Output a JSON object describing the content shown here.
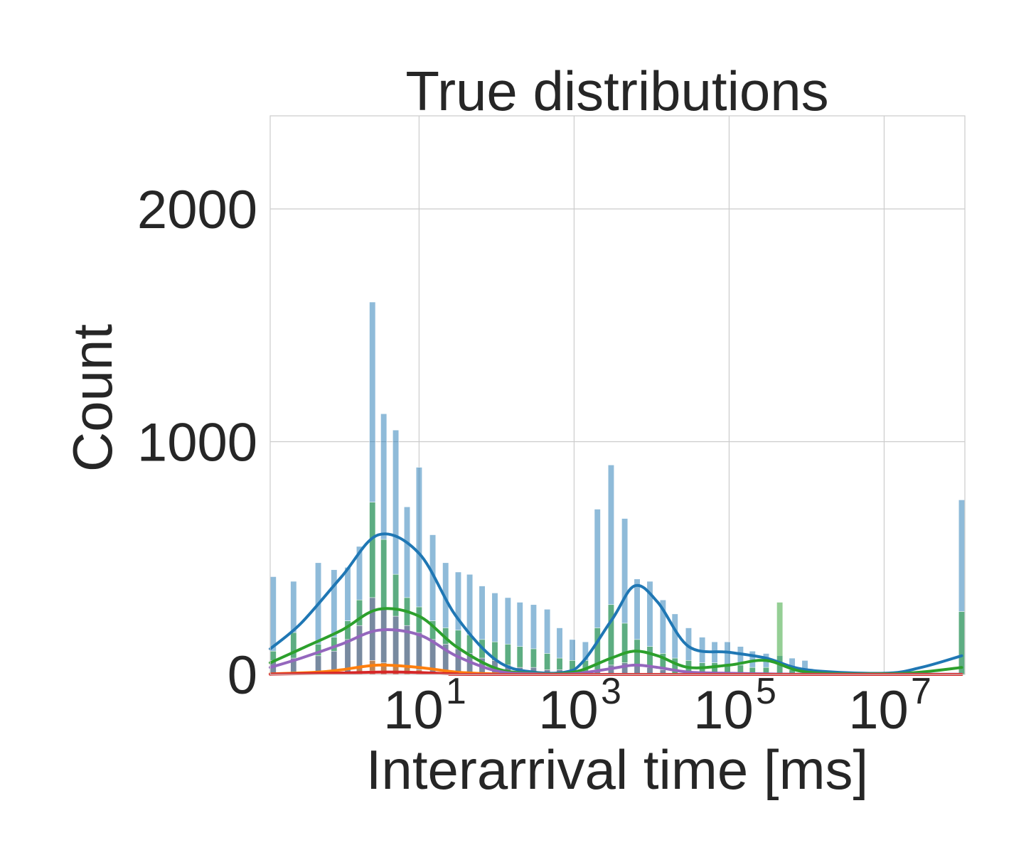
{
  "chart_data": {
    "type": "bar",
    "title": "True distributions",
    "xlabel": "Interarrival time [ms]",
    "ylabel": "Count",
    "x_scale": "log",
    "xlim": [
      0.12,
      110000000
    ],
    "ylim": [
      0,
      2400
    ],
    "grid": true,
    "x_ticks": [
      {
        "base": "10",
        "exp": "1",
        "value": 10
      },
      {
        "base": "10",
        "exp": "3",
        "value": 1000
      },
      {
        "base": "10",
        "exp": "5",
        "value": 100000
      },
      {
        "base": "10",
        "exp": "7",
        "value": 10000000
      }
    ],
    "y_ticks": [
      {
        "label": "0",
        "value": 0
      },
      {
        "label": "1000",
        "value": 1000
      },
      {
        "label": "2000",
        "value": 2000
      }
    ],
    "series": [
      {
        "color": "#1f77b4",
        "hist": [
          [
            0.13,
            420
          ],
          [
            0.24,
            400
          ],
          [
            0.5,
            480
          ],
          [
            0.8,
            450
          ],
          [
            1.2,
            460
          ],
          [
            1.7,
            550
          ],
          [
            2.5,
            1600
          ],
          [
            3.5,
            1120
          ],
          [
            5,
            1050
          ],
          [
            7,
            720
          ],
          [
            10,
            890
          ],
          [
            15,
            600
          ],
          [
            22,
            480
          ],
          [
            32,
            440
          ],
          [
            45,
            430
          ],
          [
            65,
            380
          ],
          [
            95,
            350
          ],
          [
            140,
            330
          ],
          [
            200,
            310
          ],
          [
            300,
            300
          ],
          [
            450,
            280
          ],
          [
            650,
            200
          ],
          [
            950,
            150
          ],
          [
            1400,
            140
          ],
          [
            2000,
            710
          ],
          [
            3000,
            900
          ],
          [
            4500,
            670
          ],
          [
            6500,
            410
          ],
          [
            9500,
            400
          ],
          [
            14000,
            320
          ],
          [
            20000,
            260
          ],
          [
            30000,
            200
          ],
          [
            45000,
            160
          ],
          [
            65000,
            140
          ],
          [
            95000,
            140
          ],
          [
            140000,
            120
          ],
          [
            200000,
            100
          ],
          [
            300000,
            90
          ],
          [
            450000,
            80
          ],
          [
            650000,
            70
          ],
          [
            950000,
            60
          ],
          [
            100000000,
            750
          ]
        ],
        "kde": [
          [
            0.12,
            110
          ],
          [
            0.3,
            220
          ],
          [
            1,
            420
          ],
          [
            3,
            600
          ],
          [
            10,
            520
          ],
          [
            30,
            250
          ],
          [
            100,
            60
          ],
          [
            300,
            10
          ],
          [
            1000,
            20
          ],
          [
            3000,
            230
          ],
          [
            6000,
            380
          ],
          [
            12000,
            310
          ],
          [
            30000,
            120
          ],
          [
            100000,
            95
          ],
          [
            300000,
            70
          ],
          [
            1000000,
            20
          ],
          [
            10000000,
            5
          ],
          [
            30000000,
            30
          ],
          [
            100000000,
            80
          ]
        ]
      },
      {
        "color": "#2ca02c",
        "hist": [
          [
            0.13,
            100
          ],
          [
            0.24,
            180
          ],
          [
            0.5,
            130
          ],
          [
            0.8,
            160
          ],
          [
            1.2,
            230
          ],
          [
            1.7,
            320
          ],
          [
            2.5,
            740
          ],
          [
            3.5,
            580
          ],
          [
            5,
            430
          ],
          [
            7,
            330
          ],
          [
            10,
            290
          ],
          [
            15,
            230
          ],
          [
            22,
            200
          ],
          [
            32,
            190
          ],
          [
            45,
            170
          ],
          [
            65,
            150
          ],
          [
            95,
            140
          ],
          [
            140,
            130
          ],
          [
            200,
            120
          ],
          [
            300,
            110
          ],
          [
            450,
            90
          ],
          [
            650,
            70
          ],
          [
            950,
            60
          ],
          [
            1400,
            60
          ],
          [
            2000,
            200
          ],
          [
            3000,
            300
          ],
          [
            4500,
            220
          ],
          [
            6500,
            150
          ],
          [
            9500,
            120
          ],
          [
            14000,
            90
          ],
          [
            20000,
            70
          ],
          [
            30000,
            60
          ],
          [
            45000,
            50
          ],
          [
            65000,
            50
          ],
          [
            95000,
            40
          ],
          [
            140000,
            40
          ],
          [
            200000,
            30
          ],
          [
            300000,
            30
          ],
          [
            450000,
            310
          ],
          [
            650000,
            20
          ],
          [
            950000,
            20
          ],
          [
            100000000,
            270
          ]
        ],
        "kde": [
          [
            0.12,
            50
          ],
          [
            0.3,
            110
          ],
          [
            1,
            190
          ],
          [
            3,
            280
          ],
          [
            10,
            250
          ],
          [
            30,
            120
          ],
          [
            100,
            25
          ],
          [
            300,
            5
          ],
          [
            1000,
            10
          ],
          [
            3000,
            70
          ],
          [
            6000,
            100
          ],
          [
            12000,
            80
          ],
          [
            30000,
            30
          ],
          [
            100000,
            40
          ],
          [
            300000,
            60
          ],
          [
            1000000,
            10
          ],
          [
            10000000,
            3
          ],
          [
            30000000,
            10
          ],
          [
            100000000,
            30
          ]
        ]
      },
      {
        "color": "#9467bd",
        "hist": [
          [
            0.13,
            60
          ],
          [
            0.24,
            70
          ],
          [
            0.5,
            80
          ],
          [
            0.8,
            100
          ],
          [
            1.2,
            150
          ],
          [
            1.7,
            210
          ],
          [
            2.5,
            330
          ],
          [
            3.5,
            280
          ],
          [
            5,
            250
          ],
          [
            7,
            210
          ],
          [
            10,
            180
          ],
          [
            15,
            150
          ],
          [
            22,
            130
          ],
          [
            32,
            110
          ],
          [
            45,
            90
          ],
          [
            65,
            70
          ],
          [
            95,
            60
          ],
          [
            140,
            40
          ],
          [
            200,
            30
          ],
          [
            300,
            30
          ],
          [
            450,
            20
          ],
          [
            650,
            20
          ],
          [
            950,
            10
          ],
          [
            1400,
            10
          ],
          [
            2000,
            20
          ],
          [
            3000,
            40
          ],
          [
            4500,
            50
          ],
          [
            6500,
            40
          ],
          [
            9500,
            30
          ],
          [
            14000,
            20
          ]
        ],
        "kde": [
          [
            0.12,
            30
          ],
          [
            0.3,
            70
          ],
          [
            1,
            130
          ],
          [
            3,
            190
          ],
          [
            10,
            170
          ],
          [
            30,
            80
          ],
          [
            100,
            15
          ],
          [
            300,
            3
          ],
          [
            1000,
            3
          ],
          [
            3000,
            25
          ],
          [
            6000,
            40
          ],
          [
            12000,
            30
          ],
          [
            30000,
            10
          ],
          [
            100000,
            5
          ],
          [
            300000,
            2
          ],
          [
            1000000,
            1
          ],
          [
            100000000,
            1
          ]
        ]
      },
      {
        "color": "#ff7f0e",
        "hist": [
          [
            1.7,
            30
          ],
          [
            2.5,
            60
          ],
          [
            3.5,
            50
          ],
          [
            5,
            40
          ],
          [
            7,
            30
          ],
          [
            10,
            20
          ],
          [
            15,
            10
          ]
        ],
        "kde": [
          [
            0.12,
            2
          ],
          [
            0.5,
            10
          ],
          [
            1,
            20
          ],
          [
            3,
            40
          ],
          [
            10,
            30
          ],
          [
            30,
            10
          ],
          [
            100,
            2
          ],
          [
            300,
            0
          ],
          [
            100000000,
            0
          ]
        ]
      },
      {
        "color": "#d62728",
        "hist": [
          [
            2.5,
            15
          ],
          [
            3.5,
            10
          ],
          [
            5,
            10
          ]
        ],
        "kde": [
          [
            0.12,
            1
          ],
          [
            1,
            6
          ],
          [
            3,
            10
          ],
          [
            10,
            8
          ],
          [
            30,
            2
          ],
          [
            100,
            0
          ],
          [
            100000000,
            0
          ]
        ]
      }
    ]
  }
}
